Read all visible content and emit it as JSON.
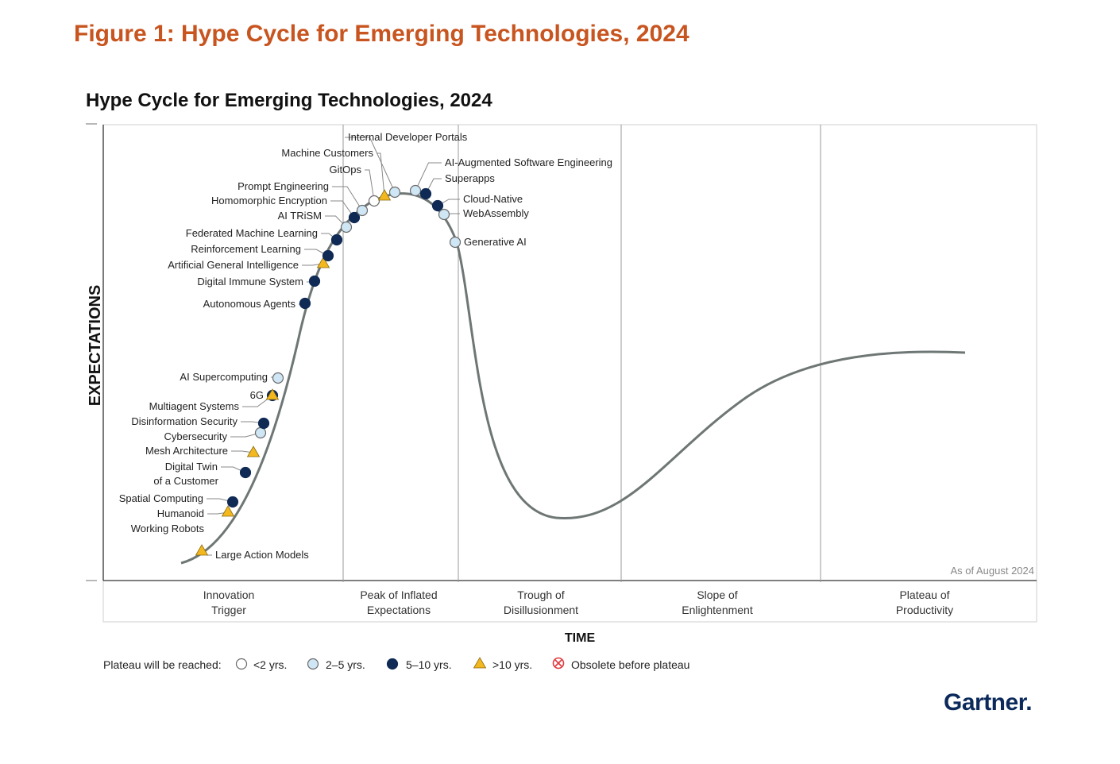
{
  "figure_title": "Figure 1: Hype Cycle for Emerging Technologies, 2024",
  "brand": "Gartner",
  "brand_mark": ".",
  "colors": {
    "figure_title": "#c8541f",
    "curve": "#6e7775",
    "lt2": "#ffffff",
    "y2to5": "#cfe6f5",
    "y5to10": "#0f2a55",
    "gt10": "#f2b81e",
    "obsolete": "#e0393e",
    "brand": "#0b2a5b"
  },
  "chart_data": {
    "type": "hype_cycle",
    "title": "Hype Cycle for Emerging Technologies, 2024",
    "xlabel": "TIME",
    "ylabel": "EXPECTATIONS",
    "as_of": "As of August 2024",
    "phases": [
      {
        "line1": "Innovation",
        "line2": "Trigger"
      },
      {
        "line1": "Peak of Inflated",
        "line2": "Expectations"
      },
      {
        "line1": "Trough of",
        "line2": "Disillusionment"
      },
      {
        "line1": "Slope of",
        "line2": "Enlightenment"
      },
      {
        "line1": "Plateau of",
        "line2": "Productivity"
      }
    ],
    "legend": {
      "title": "Plateau will be reached:",
      "items": [
        {
          "key": "lt2",
          "label": "<2 yrs."
        },
        {
          "key": "y2to5",
          "label": "2–5 yrs."
        },
        {
          "key": "y5to10",
          "label": "5–10 yrs."
        },
        {
          "key": "gt10",
          "label": ">10 yrs."
        },
        {
          "key": "obsolete",
          "label": "Obsolete before plateau"
        }
      ]
    },
    "technologies": [
      {
        "name": "Large Action Models",
        "phase": "Innovation Trigger",
        "position": 0.05,
        "plateau": "gt10"
      },
      {
        "name": "Humanoid Working Robots",
        "phase": "Innovation Trigger",
        "position": 0.11,
        "plateau": "gt10"
      },
      {
        "name": "Spatial Computing",
        "phase": "Innovation Trigger",
        "position": 0.13,
        "plateau": "y5to10"
      },
      {
        "name": "Digital Twin of a Customer",
        "phase": "Innovation Trigger",
        "position": 0.16,
        "plateau": "y5to10"
      },
      {
        "name": "Mesh Architecture",
        "phase": "Innovation Trigger",
        "position": 0.19,
        "plateau": "gt10"
      },
      {
        "name": "Cybersecurity",
        "phase": "Innovation Trigger",
        "position": 0.22,
        "plateau": "y2to5"
      },
      {
        "name": "Disinformation Security",
        "phase": "Innovation Trigger",
        "position": 0.24,
        "plateau": "y5to10"
      },
      {
        "name": "Multiagent Systems",
        "phase": "Innovation Trigger",
        "position": 0.26,
        "plateau": "y5to10"
      },
      {
        "name": "6G",
        "phase": "Innovation Trigger",
        "position": 0.28,
        "plateau": "gt10"
      },
      {
        "name": "AI Supercomputing",
        "phase": "Innovation Trigger",
        "position": 0.3,
        "plateau": "y2to5"
      },
      {
        "name": "Autonomous Agents",
        "phase": "Innovation Trigger",
        "position": 0.4,
        "plateau": "y5to10"
      },
      {
        "name": "Digital Immune System",
        "phase": "Innovation Trigger",
        "position": 0.44,
        "plateau": "y5to10"
      },
      {
        "name": "Artificial General Intelligence",
        "phase": "Innovation Trigger",
        "position": 0.47,
        "plateau": "gt10"
      },
      {
        "name": "Reinforcement Learning",
        "phase": "Innovation Trigger",
        "position": 0.5,
        "plateau": "y5to10"
      },
      {
        "name": "Federated Machine Learning",
        "phase": "Innovation Trigger",
        "position": 0.53,
        "plateau": "y5to10"
      },
      {
        "name": "AI TRiSM",
        "phase": "Peak of Inflated Expectations",
        "position": 0.56,
        "plateau": "y2to5"
      },
      {
        "name": "Homomorphic Encryption",
        "phase": "Peak of Inflated Expectations",
        "position": 0.59,
        "plateau": "y5to10"
      },
      {
        "name": "Prompt Engineering",
        "phase": "Peak of Inflated Expectations",
        "position": 0.62,
        "plateau": "y2to5"
      },
      {
        "name": "GitOps",
        "phase": "Peak of Inflated Expectations",
        "position": 0.65,
        "plateau": "lt2"
      },
      {
        "name": "Machine Customers",
        "phase": "Peak of Inflated Expectations",
        "position": 0.68,
        "plateau": "gt10"
      },
      {
        "name": "Internal Developer Portals",
        "phase": "Peak of Inflated Expectations",
        "position": 0.71,
        "plateau": "y2to5"
      },
      {
        "name": "AI-Augmented Software Engineering",
        "phase": "Peak of Inflated Expectations",
        "position": 0.78,
        "plateau": "y2to5"
      },
      {
        "name": "Superapps",
        "phase": "Peak of Inflated Expectations",
        "position": 0.82,
        "plateau": "y5to10"
      },
      {
        "name": "Cloud-Native",
        "phase": "Peak of Inflated Expectations",
        "position": 0.86,
        "plateau": "y5to10"
      },
      {
        "name": "WebAssembly",
        "phase": "Peak of Inflated Expectations",
        "position": 0.89,
        "plateau": "y2to5"
      },
      {
        "name": "Generative AI",
        "phase": "Peak of Inflated Expectations",
        "position": 0.97,
        "plateau": "y2to5"
      }
    ]
  }
}
